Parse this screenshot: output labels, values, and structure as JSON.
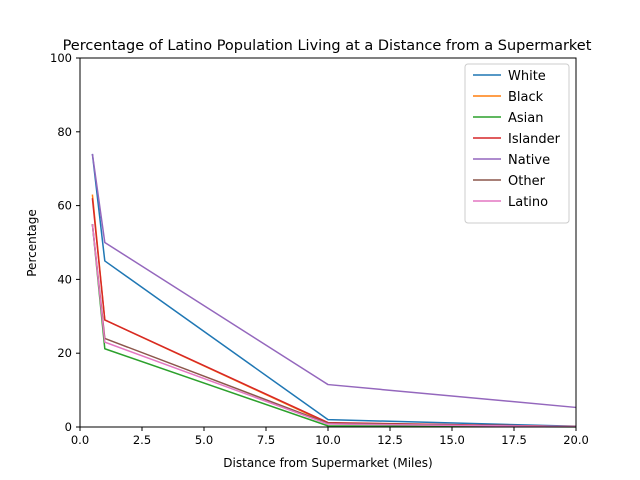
{
  "chart_data": {
    "type": "line",
    "title": "Percentage of Latino Population Living at a Distance from a Supermarket",
    "xlabel": "Distance from Supermarket (Miles)",
    "ylabel": "Percentage",
    "xlim": [
      0,
      20
    ],
    "ylim": [
      0,
      100
    ],
    "x_ticks": [
      "0.0",
      "2.5",
      "5.0",
      "7.5",
      "10.0",
      "12.5",
      "15.0",
      "17.5",
      "20.0"
    ],
    "y_ticks": [
      "0",
      "20",
      "40",
      "60",
      "80",
      "100"
    ],
    "grid": false,
    "legend_position": "top-right",
    "x": [
      0.5,
      1,
      10,
      20
    ],
    "series": [
      {
        "name": "White",
        "color": "#1f77b4",
        "values": [
          74,
          45,
          2,
          0.2
        ]
      },
      {
        "name": "Black",
        "color": "#ff7f0e",
        "values": [
          63,
          29,
          1,
          0.1
        ]
      },
      {
        "name": "Asian",
        "color": "#2ca02c",
        "values": [
          55,
          21.2,
          0.3,
          0.05
        ]
      },
      {
        "name": "Islander",
        "color": "#d62728",
        "values": [
          62,
          29,
          1.2,
          0.1
        ]
      },
      {
        "name": "Native",
        "color": "#9467bd",
        "values": [
          74,
          50,
          11.5,
          5.3
        ]
      },
      {
        "name": "Other",
        "color": "#8c564b",
        "values": [
          55,
          24,
          1,
          0.1
        ]
      },
      {
        "name": "Latino",
        "color": "#e377c2",
        "values": [
          55,
          23,
          0.8,
          0.1
        ]
      }
    ]
  }
}
